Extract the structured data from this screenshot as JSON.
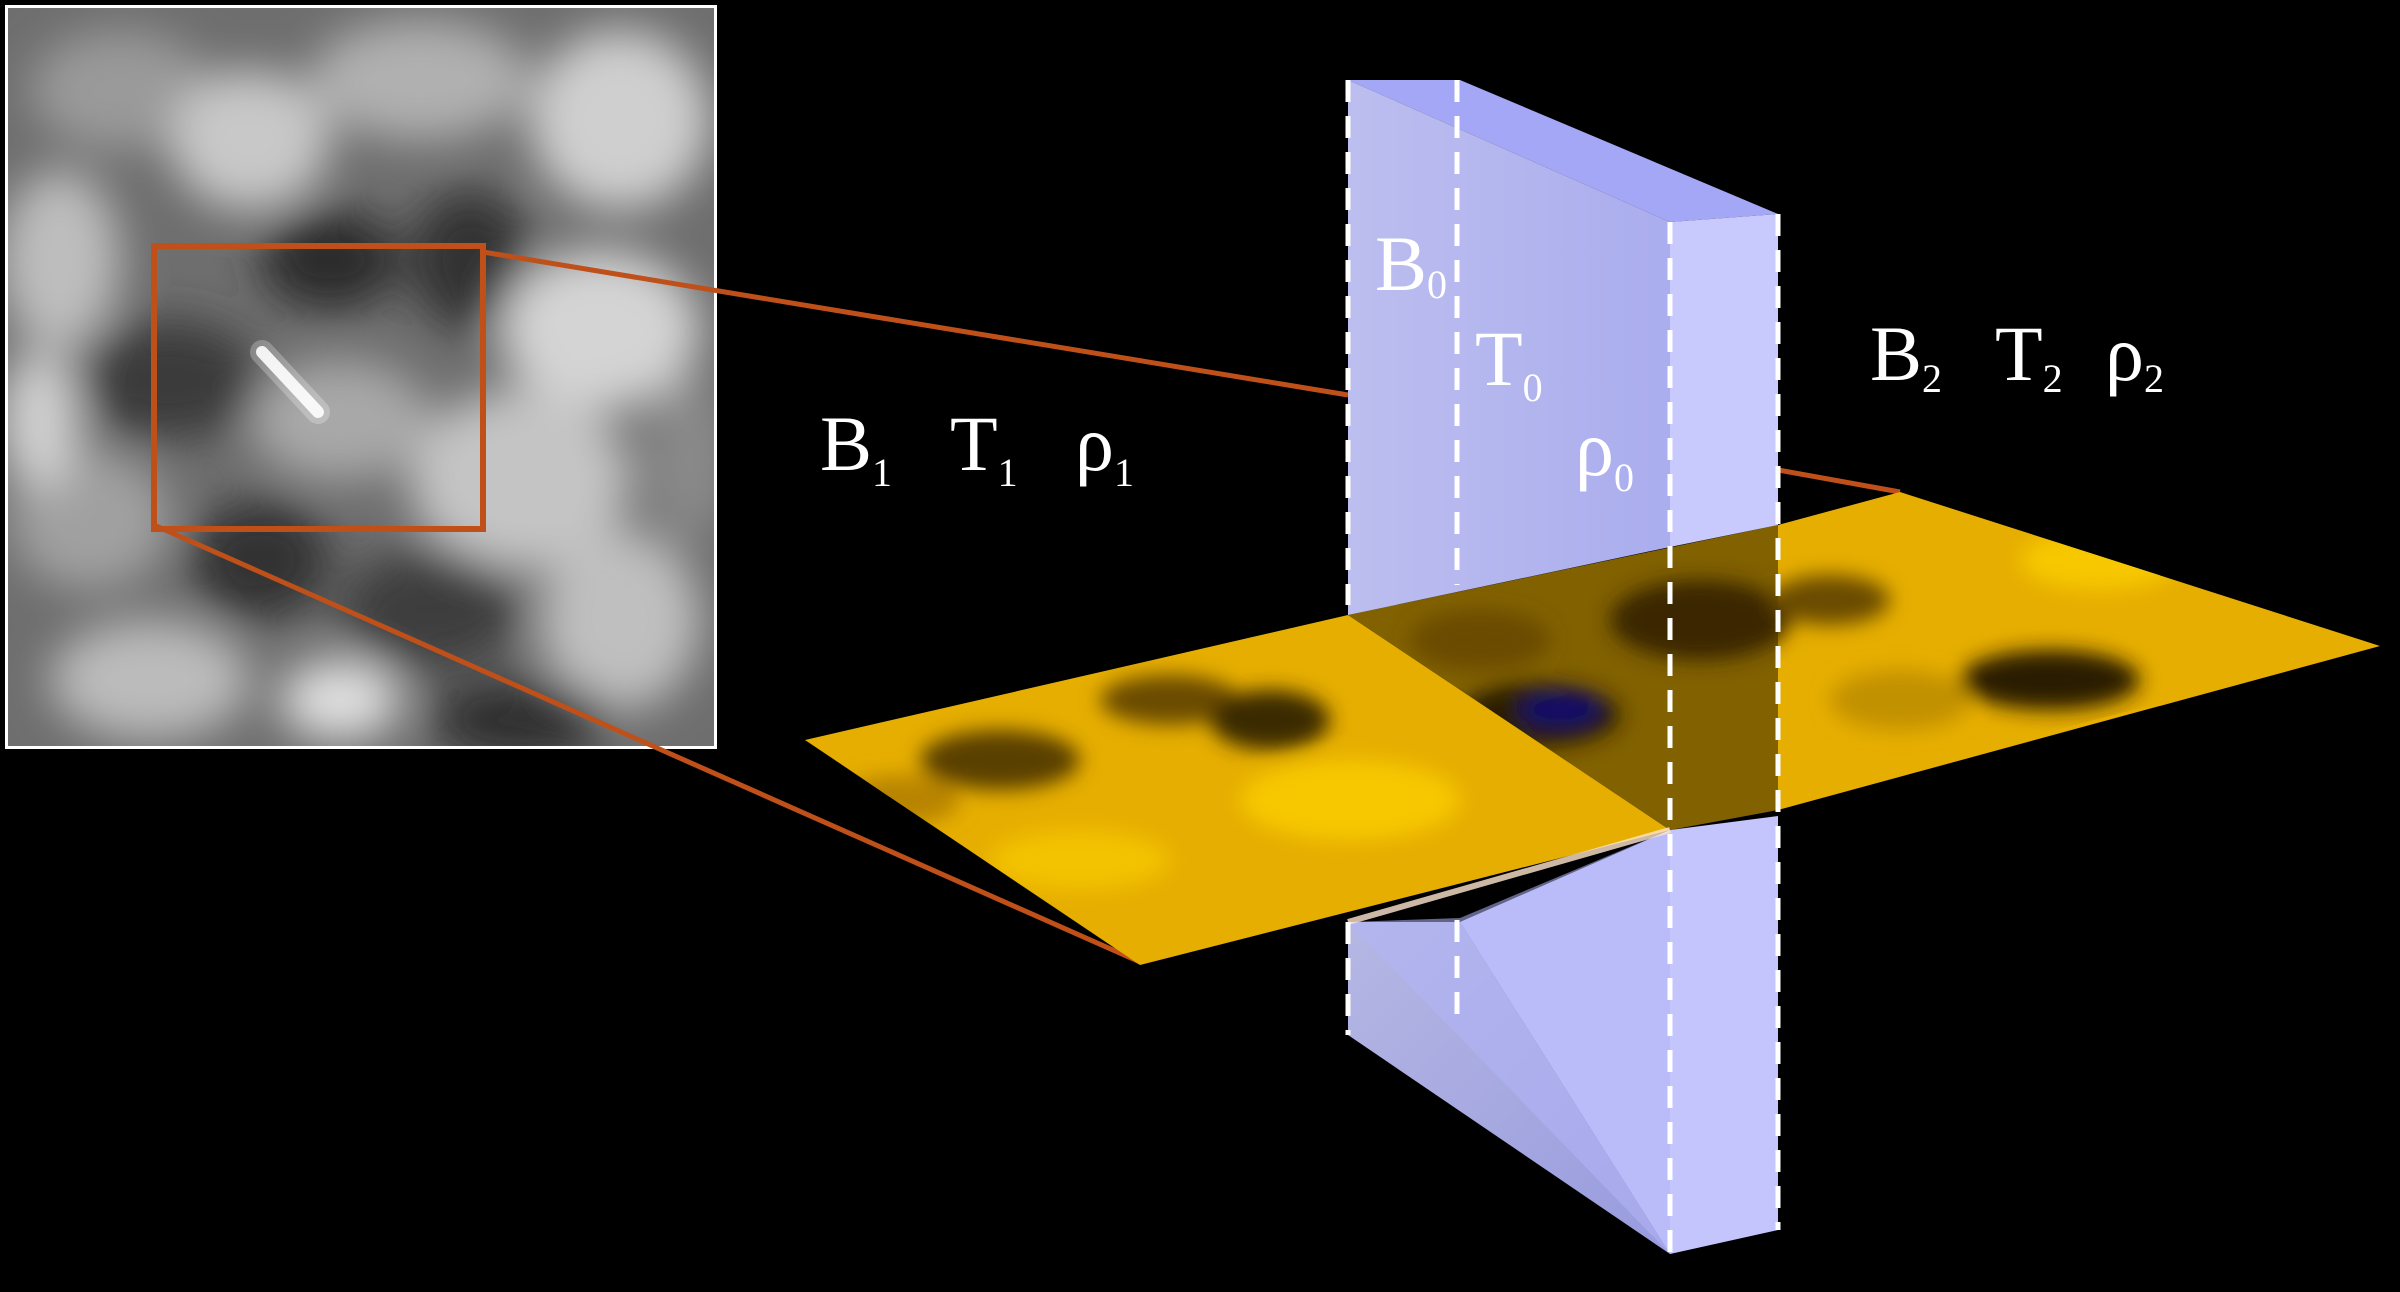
{
  "left_region": {
    "field": "B",
    "field_sub": "1",
    "temperature": "T",
    "temperature_sub": "1",
    "density": "ρ",
    "density_sub": "1"
  },
  "slab": {
    "field": "B",
    "field_sub": "0",
    "temperature": "T",
    "temperature_sub": "0",
    "density": "ρ",
    "density_sub": "0"
  },
  "right_region": {
    "field": "B",
    "field_sub": "2",
    "temperature": "T",
    "temperature_sub": "2",
    "density": "ρ",
    "density_sub": "2"
  },
  "colors": {
    "background": "#000000",
    "slab": "#b9bcfb",
    "zoom_box": "#c0501a",
    "surface": "#e8b000",
    "dashes": "#ffffff"
  }
}
